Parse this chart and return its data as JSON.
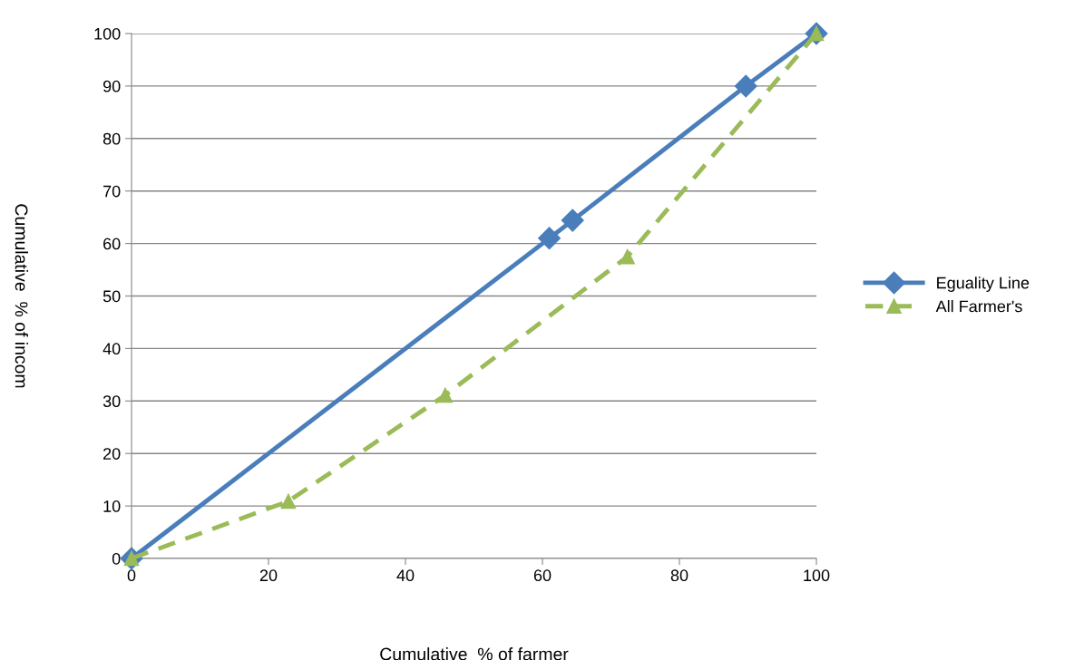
{
  "chart_data": {
    "type": "line",
    "xlabel": "Cumulative  % of farmer",
    "ylabel": "Cumulative  % of incom",
    "xlim": [
      0,
      100
    ],
    "xticks": [
      0,
      20,
      40,
      60,
      80,
      100
    ],
    "ylim": [
      0,
      100
    ],
    "yticks": [
      0,
      10,
      20,
      30,
      40,
      50,
      60,
      70,
      80,
      90,
      100
    ],
    "grid": "y",
    "legend": "right",
    "series": [
      {
        "name": "Eguality Line",
        "color": "#4a7ebb",
        "marker": "diamond",
        "line_style": "solid",
        "x": [
          0,
          61,
          64.4,
          89.7,
          100
        ],
        "values": [
          0,
          61,
          64.4,
          90,
          100
        ]
      },
      {
        "name": "All Farmer's",
        "color": "#9bbb59",
        "marker": "triangle",
        "line_style": "dashed",
        "x": [
          0,
          22.9,
          45.8,
          72.4,
          100
        ],
        "values": [
          0,
          10.9,
          31.1,
          57.5,
          100
        ]
      }
    ]
  }
}
